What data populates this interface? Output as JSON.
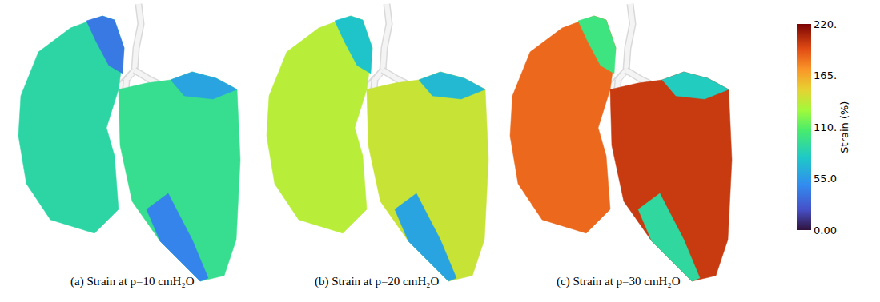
{
  "chart_data": {
    "type": "strain_map",
    "colorbar": {
      "title": "Strain (%)",
      "range": [
        0,
        220
      ],
      "ticks": [
        {
          "value": 0,
          "label": "0.00"
        },
        {
          "value": 55,
          "label": "55.0"
        },
        {
          "value": 110,
          "label": "110."
        },
        {
          "value": 165,
          "label": "165."
        },
        {
          "value": 220,
          "label": "220."
        }
      ]
    },
    "panels": [
      {
        "caption": "(a) Strain at p=10 cmH₂O",
        "right_lung": {
          "main": 88,
          "apex": 40
        },
        "left_lung": {
          "main": 95,
          "upper_medial": 60,
          "lower_medial": 45
        }
      },
      {
        "caption": "(b) Strain at p=20 cmH₂O",
        "right_lung": {
          "main": 135,
          "apex": 75
        },
        "left_lung": {
          "main": 140,
          "upper_medial": 70,
          "lower_medial": 60
        }
      },
      {
        "caption": "(c) Strain at p=30 cmH₂O",
        "right_lung": {
          "main": 185,
          "apex": 100
        },
        "left_lung": {
          "main": 200,
          "upper_medial": 80,
          "lower_medial": 90
        }
      }
    ]
  }
}
